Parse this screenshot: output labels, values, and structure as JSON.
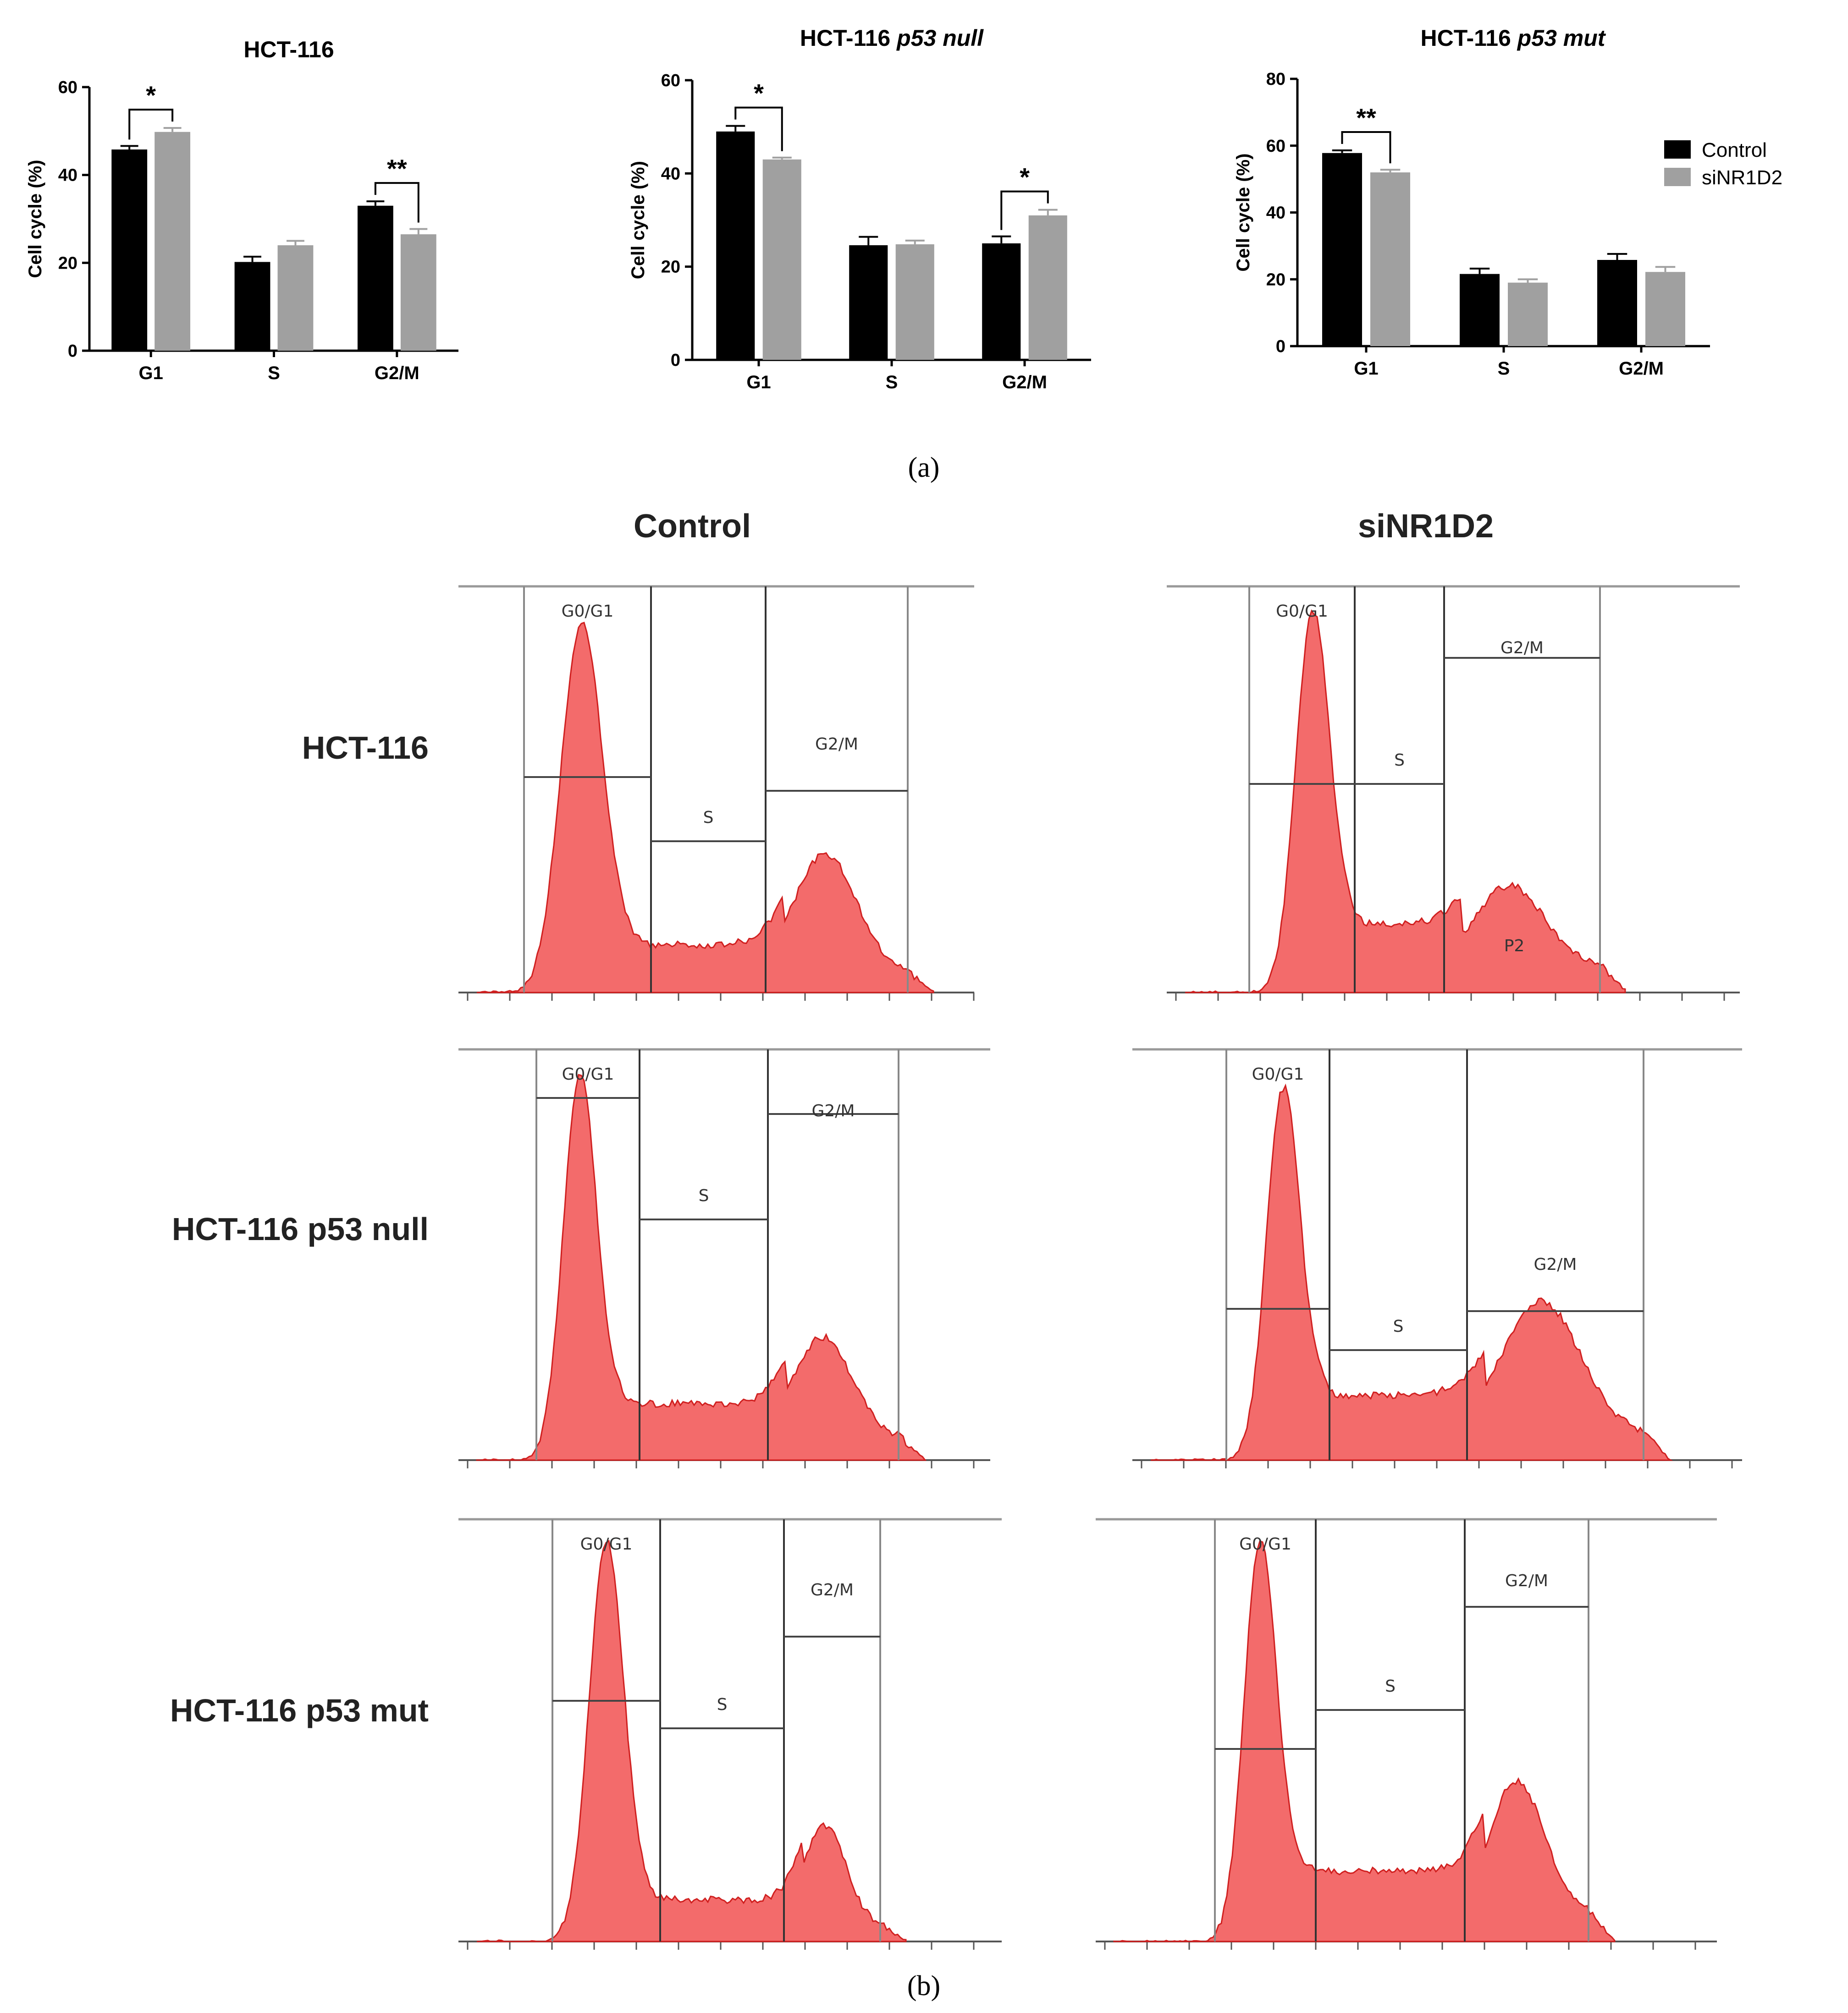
{
  "panel_labels": {
    "a": "(a)",
    "b": "(b)"
  },
  "legend": {
    "series": [
      {
        "name": "Control",
        "color": "#000000"
      },
      {
        "name": "siNR1D2",
        "color": "#a0a0a0"
      }
    ]
  },
  "chart_data": [
    {
      "type": "bar",
      "title": "HCT-116",
      "title_italic": "",
      "xlabel": "",
      "ylabel": "Cell cycle (%)",
      "categories": [
        "G1",
        "S",
        "G2/M"
      ],
      "ylim": [
        0,
        60
      ],
      "yticks": [
        0,
        20,
        40,
        60
      ],
      "series": [
        {
          "name": "Control",
          "values": [
            45.8,
            20.2,
            33.0
          ],
          "errors": [
            0.8,
            1.2,
            1.0
          ]
        },
        {
          "name": "siNR1D2",
          "values": [
            49.8,
            24.0,
            26.5
          ],
          "errors": [
            0.9,
            1.0,
            1.2
          ]
        }
      ],
      "significance": [
        {
          "category": "G1",
          "label": "*"
        },
        {
          "category": "G2/M",
          "label": "**"
        }
      ]
    },
    {
      "type": "bar",
      "title": "HCT-116 ",
      "title_italic": "p53 null",
      "xlabel": "",
      "ylabel": "Cell cycle (%)",
      "categories": [
        "G1",
        "S",
        "G2/M"
      ],
      "ylim": [
        0,
        60
      ],
      "yticks": [
        0,
        20,
        40,
        60
      ],
      "series": [
        {
          "name": "Control",
          "values": [
            49.0,
            24.6,
            25.0
          ],
          "errors": [
            1.2,
            1.8,
            1.5
          ]
        },
        {
          "name": "siNR1D2",
          "values": [
            43.0,
            24.8,
            31.0
          ],
          "errors": [
            0.4,
            0.8,
            1.2
          ]
        }
      ],
      "significance": [
        {
          "category": "G1",
          "label": "*"
        },
        {
          "category": "G2/M",
          "label": "*"
        }
      ]
    },
    {
      "type": "bar",
      "title": "HCT-116 ",
      "title_italic": "p53 mut",
      "xlabel": "",
      "ylabel": "Cell cycle (%)",
      "categories": [
        "G1",
        "S",
        "G2/M"
      ],
      "ylim": [
        0,
        80
      ],
      "yticks": [
        0,
        20,
        40,
        60,
        80
      ],
      "series": [
        {
          "name": "Control",
          "values": [
            57.8,
            21.6,
            25.8
          ],
          "errors": [
            0.8,
            1.6,
            1.8
          ]
        },
        {
          "name": "siNR1D2",
          "values": [
            52.0,
            19.0,
            22.2
          ],
          "errors": [
            0.8,
            1.0,
            1.5
          ]
        }
      ],
      "significance": [
        {
          "category": "G1",
          "label": "**"
        }
      ]
    }
  ],
  "flow": {
    "columns": [
      "Control",
      "siNR1D2"
    ],
    "rows": [
      "HCT-116",
      "HCT-116 p53 null",
      "HCT-116 p53 mut"
    ],
    "histograms": [
      {
        "row": 0,
        "col": 0,
        "gates": [
          "G0/G1",
          "S",
          "G2/M"
        ],
        "extra": ""
      },
      {
        "row": 0,
        "col": 1,
        "gates": [
          "G0/G1",
          "S",
          "G2/M"
        ],
        "extra": "P2"
      },
      {
        "row": 1,
        "col": 0,
        "gates": [
          "G0/G1",
          "S",
          "G2/M"
        ],
        "extra": ""
      },
      {
        "row": 1,
        "col": 1,
        "gates": [
          "G0/G1",
          "S",
          "G2/M"
        ],
        "extra": ""
      },
      {
        "row": 2,
        "col": 0,
        "gates": [
          "G0/G1",
          "S",
          "G2/M"
        ],
        "extra": ""
      },
      {
        "row": 2,
        "col": 1,
        "gates": [
          "G0/G1",
          "S",
          "G2/M"
        ],
        "extra": ""
      }
    ]
  }
}
